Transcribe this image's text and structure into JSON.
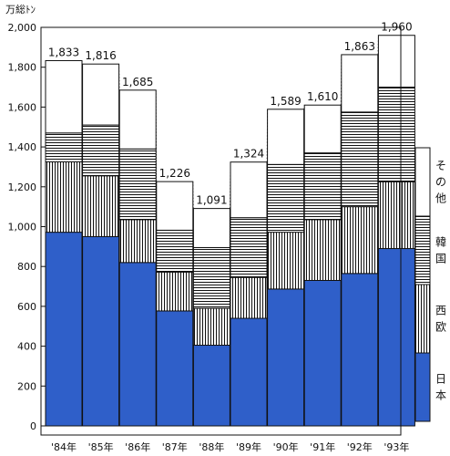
{
  "chart_data": {
    "type": "bar",
    "stacked": true,
    "unit_label": "万総ﾄﾝ",
    "categories": [
      "'84年",
      "'85年",
      "'86年",
      "'87年",
      "'88年",
      "'89年",
      "'90年",
      "'91年",
      "'92年",
      "'93年"
    ],
    "totals": [
      "1,833",
      "1,816",
      "1,685",
      "1,226",
      "1,091",
      "1,324",
      "1,589",
      "1,610",
      "1,863",
      "1,960"
    ],
    "ylim": [
      0,
      2000
    ],
    "yticks": [
      "0",
      "200",
      "400",
      "600",
      "800",
      "1,000",
      "1,200",
      "1,400",
      "1,600",
      "1,800",
      "2,000"
    ],
    "series": [
      {
        "name": "日本",
        "color": "#2f5fc9",
        "pattern": "solid",
        "values": [
          972,
          950,
          820,
          577,
          405,
          540,
          687,
          730,
          765,
          890
        ]
      },
      {
        "name": "西欧",
        "color": "#000000",
        "pattern": "vertical",
        "values": [
          353,
          305,
          215,
          195,
          185,
          205,
          285,
          305,
          335,
          335
        ]
      },
      {
        "name": "韓国",
        "color": "#000000",
        "pattern": "horizontal",
        "values": [
          145,
          255,
          355,
          210,
          305,
          300,
          340,
          335,
          475,
          475
        ]
      },
      {
        "name": "その他",
        "color": "#ffffff",
        "pattern": "white",
        "values": [
          363,
          306,
          295,
          244,
          196,
          279,
          277,
          240,
          288,
          260
        ]
      }
    ],
    "legend_position": "right",
    "grid": false
  }
}
